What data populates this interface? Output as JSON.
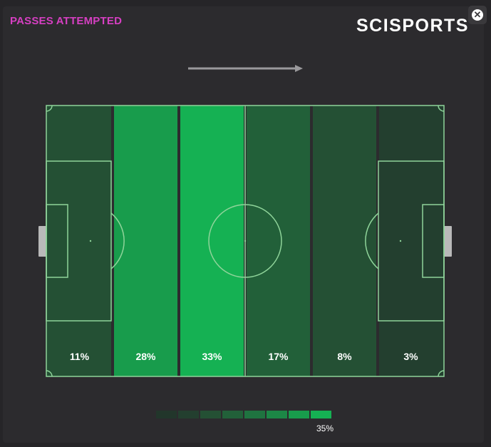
{
  "header": {
    "title": "PASSES ATTEMPTED",
    "brand": "SCISPORTS"
  },
  "close_icon": "close-icon",
  "colors": {
    "title": "#d63fc2",
    "pitch_line": "#8fd49a",
    "scale": [
      "#22362b",
      "#233f2f",
      "#245034",
      "#226039",
      "#1f7340",
      "#1c8746",
      "#189c4c",
      "#15b153"
    ]
  },
  "chart_data": {
    "type": "heatmap",
    "title": "PASSES ATTEMPTED",
    "direction": "left-to-right",
    "zones": [
      "1",
      "2",
      "3",
      "4",
      "5",
      "6"
    ],
    "values": [
      11,
      28,
      33,
      17,
      8,
      3
    ],
    "labels": [
      "11%",
      "28%",
      "33%",
      "17%",
      "8%",
      "3%"
    ],
    "scale_max_label": "35%",
    "scale_steps": 8,
    "scale_range": [
      0,
      35
    ]
  }
}
